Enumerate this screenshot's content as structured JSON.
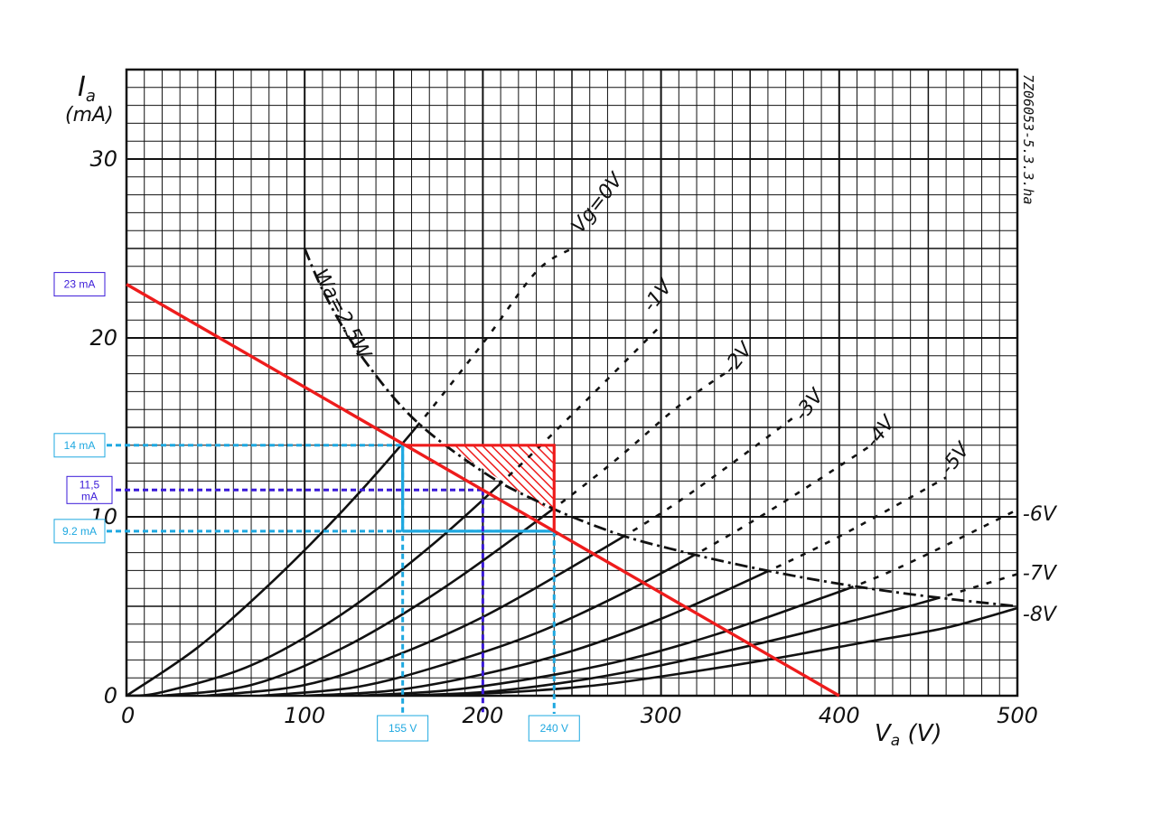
{
  "chart_data": {
    "type": "line",
    "xlabel": "V_a (V)",
    "ylabel": "I_a (mA)",
    "xlim": [
      0,
      500
    ],
    "ylim": [
      0,
      35
    ],
    "x_ticks": [
      "0",
      "100",
      "200",
      "300",
      "400",
      "500"
    ],
    "y_ticks": [
      "0",
      "10",
      "20",
      "30"
    ],
    "grid": true,
    "reference_code": "7Z06053-5.3.3.ha",
    "series": [
      {
        "name": "Vg=0V",
        "label": "Vg=0V",
        "label_x": 255,
        "label_y": 26.2,
        "points": [
          [
            0,
            0
          ],
          [
            40,
            2.7
          ],
          [
            80,
            6.2
          ],
          [
            120,
            10.2
          ],
          [
            160,
            14.7
          ],
          [
            200,
            19.7
          ],
          [
            230,
            23.7
          ],
          [
            250,
            25.0
          ]
        ]
      },
      {
        "name": "-1V",
        "label": "-1V",
        "label_x": 295,
        "label_y": 21.8,
        "points": [
          [
            0,
            0
          ],
          [
            20,
            0.2
          ],
          [
            70,
            1.7
          ],
          [
            120,
            4.5
          ],
          [
            170,
            8.3
          ],
          [
            220,
            12.8
          ],
          [
            260,
            16.7
          ],
          [
            300,
            20.7
          ]
        ]
      },
      {
        "name": "-2V",
        "label": "-2V",
        "label_x": 340,
        "label_y": 18.3,
        "points": [
          [
            20,
            0
          ],
          [
            70,
            0.6
          ],
          [
            120,
            2.6
          ],
          [
            170,
            5.5
          ],
          [
            220,
            9.0
          ],
          [
            270,
            12.8
          ],
          [
            310,
            16.2
          ],
          [
            340,
            18.3
          ]
        ]
      },
      {
        "name": "-3V",
        "label": "-3V",
        "label_x": 380,
        "label_y": 15.7,
        "points": [
          [
            45,
            0
          ],
          [
            100,
            0.6
          ],
          [
            150,
            2.2
          ],
          [
            200,
            4.4
          ],
          [
            250,
            7.2
          ],
          [
            300,
            10.2
          ],
          [
            340,
            13.0
          ],
          [
            375,
            15.6
          ]
        ]
      },
      {
        "name": "-4V",
        "label": "-4V",
        "label_x": 420,
        "label_y": 14.2,
        "points": [
          [
            75,
            0
          ],
          [
            130,
            0.5
          ],
          [
            180,
            1.8
          ],
          [
            230,
            3.5
          ],
          [
            280,
            5.8
          ],
          [
            330,
            8.5
          ],
          [
            370,
            10.9
          ],
          [
            418,
            14.0
          ]
        ]
      },
      {
        "name": "-5V",
        "label": "-5V",
        "label_x": 462,
        "label_y": 12.7,
        "points": [
          [
            100,
            0
          ],
          [
            150,
            0.3
          ],
          [
            200,
            1.2
          ],
          [
            250,
            2.5
          ],
          [
            300,
            4.3
          ],
          [
            350,
            6.5
          ],
          [
            400,
            8.9
          ],
          [
            460,
            12.2
          ]
        ]
      },
      {
        "name": "-6V",
        "label": "-6V",
        "label_x": 503,
        "label_y": 10.2,
        "points": [
          [
            130,
            0
          ],
          [
            180,
            0.3
          ],
          [
            230,
            1.0
          ],
          [
            280,
            2.0
          ],
          [
            330,
            3.4
          ],
          [
            380,
            5.1
          ],
          [
            430,
            7.0
          ],
          [
            500,
            10.4
          ]
        ]
      },
      {
        "name": "-7V",
        "label": "-7V",
        "label_x": 503,
        "label_y": 6.9,
        "points": [
          [
            150,
            0
          ],
          [
            200,
            0.2
          ],
          [
            250,
            0.8
          ],
          [
            300,
            1.7
          ],
          [
            350,
            2.8
          ],
          [
            400,
            4.0
          ],
          [
            450,
            5.3
          ],
          [
            500,
            6.8
          ]
        ]
      },
      {
        "name": "-8V",
        "label": "-8V",
        "label_x": 503,
        "label_y": 4.6,
        "points": [
          [
            165,
            0
          ],
          [
            215,
            0.2
          ],
          [
            265,
            0.6
          ],
          [
            315,
            1.3
          ],
          [
            365,
            2.1
          ],
          [
            415,
            3.0
          ],
          [
            460,
            3.8
          ],
          [
            500,
            4.9
          ]
        ]
      }
    ],
    "power_curve": {
      "name": "Wa=2.5W",
      "label": "Wa=2.5W",
      "points": [
        [
          100,
          25
        ],
        [
          110,
          22.7
        ],
        [
          125,
          20
        ],
        [
          140,
          17.9
        ],
        [
          155,
          16.1
        ],
        [
          170,
          14.7
        ],
        [
          190,
          13.2
        ],
        [
          210,
          11.9
        ],
        [
          230,
          10.9
        ],
        [
          250,
          10.0
        ],
        [
          280,
          8.9
        ],
        [
          310,
          8.1
        ],
        [
          340,
          7.4
        ],
        [
          380,
          6.6
        ],
        [
          420,
          5.95
        ],
        [
          460,
          5.43
        ],
        [
          500,
          5.0
        ]
      ]
    },
    "load_line": {
      "color": "#ee1c1c",
      "from": [
        0,
        23
      ],
      "to": [
        400,
        0
      ]
    },
    "hatched_region": {
      "color": "#ee1c1c",
      "points": [
        [
          180,
          14
        ],
        [
          240,
          14
        ],
        [
          240,
          10.2
        ],
        [
          195,
          13.0
        ]
      ]
    },
    "annotations": {
      "cyan_color": "#1ea8e0",
      "purple_color": "#3a1ad8",
      "red_triangle": [
        [
          155,
          14
        ],
        [
          240,
          14
        ],
        [
          240,
          9.2
        ]
      ],
      "cyan_rect": [
        [
          155,
          9.2
        ],
        [
          240,
          14
        ]
      ],
      "guides": [
        {
          "color": "cyan",
          "x": 155,
          "y": 14
        },
        {
          "color": "cyan",
          "x": 240,
          "y": 9.2
        },
        {
          "color": "purple",
          "x": 200,
          "y": 11.5
        }
      ],
      "y_boxes": [
        {
          "label": "23 mA",
          "value": 23,
          "color": "purple"
        },
        {
          "label": "14 mA",
          "value": 14,
          "color": "cyan"
        },
        {
          "label": "11,5 mA",
          "value": 11.5,
          "color": "purple"
        },
        {
          "label": "9.2 mA",
          "value": 9.2,
          "color": "cyan"
        }
      ],
      "x_boxes": [
        {
          "label": "155 V",
          "value": 155,
          "color": "cyan"
        },
        {
          "label": "240 V",
          "value": 240,
          "color": "cyan"
        }
      ]
    }
  }
}
